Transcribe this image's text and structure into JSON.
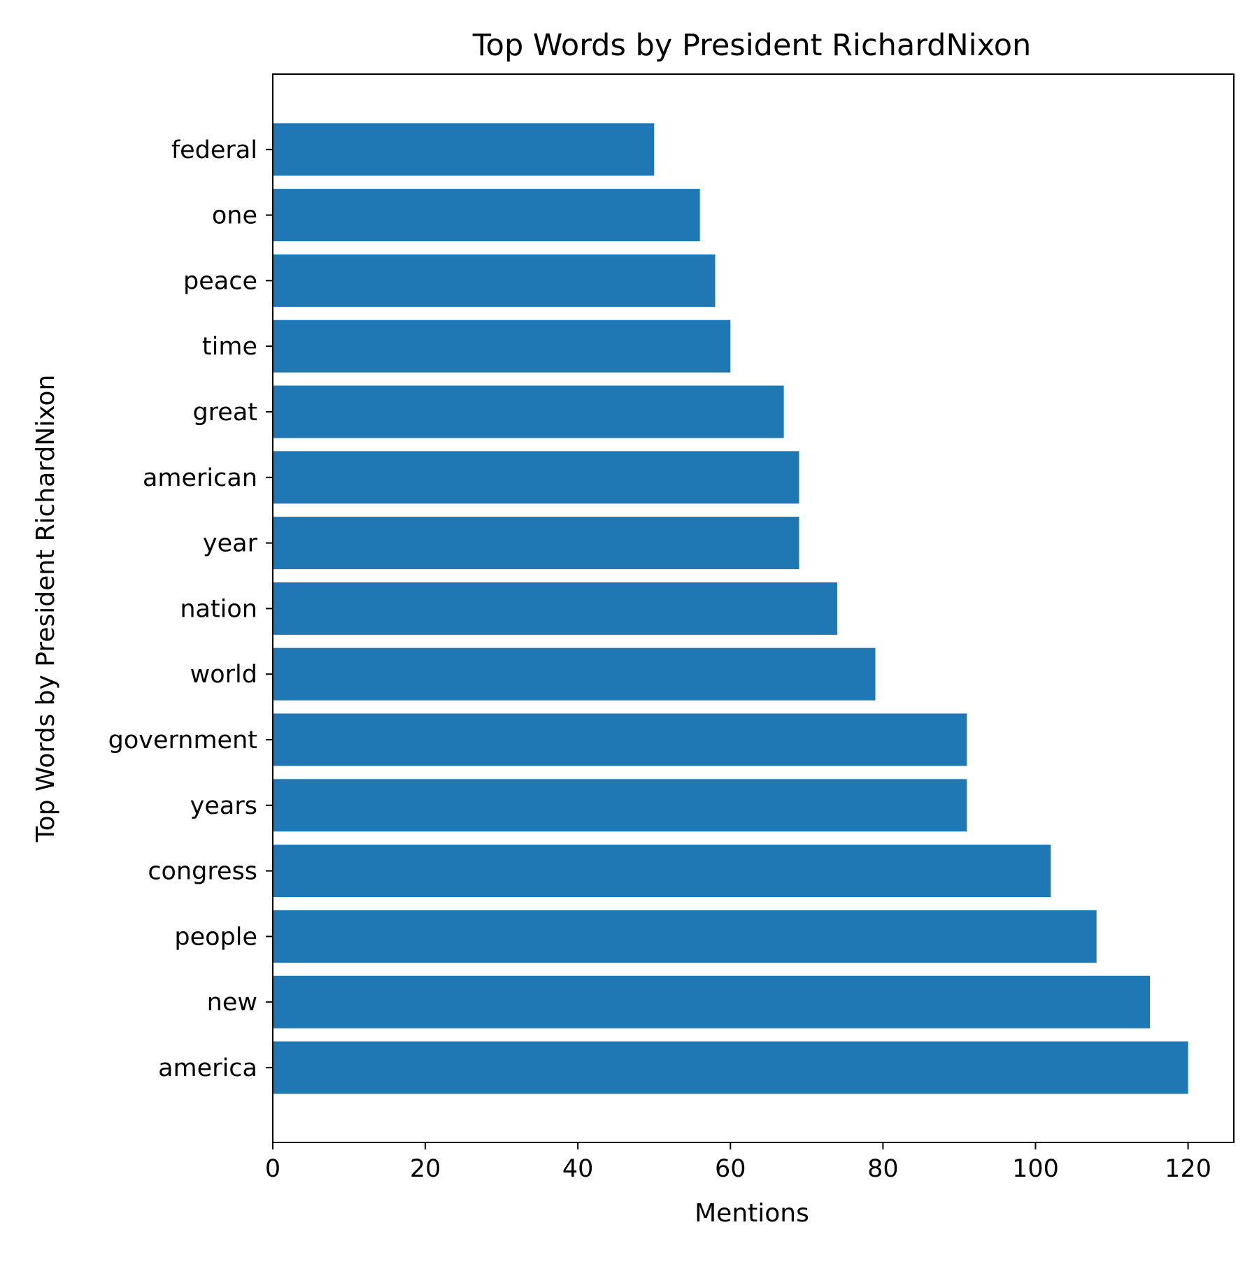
{
  "chart_data": {
    "type": "bar",
    "orientation": "horizontal",
    "title": "Top Words by President RichardNixon",
    "xlabel": "Mentions",
    "ylabel": "Top Words by President RichardNixon",
    "categories": [
      "america",
      "new",
      "people",
      "congress",
      "years",
      "government",
      "world",
      "nation",
      "year",
      "american",
      "great",
      "time",
      "peace",
      "one",
      "federal"
    ],
    "values": [
      120,
      115,
      108,
      102,
      91,
      91,
      79,
      74,
      69,
      69,
      67,
      60,
      58,
      56,
      50
    ],
    "xlim": [
      0,
      126
    ],
    "xticks": [
      0,
      20,
      40,
      60,
      80,
      100,
      120
    ],
    "grid": false,
    "legend": "none",
    "bar_color": "#1f77b4"
  }
}
